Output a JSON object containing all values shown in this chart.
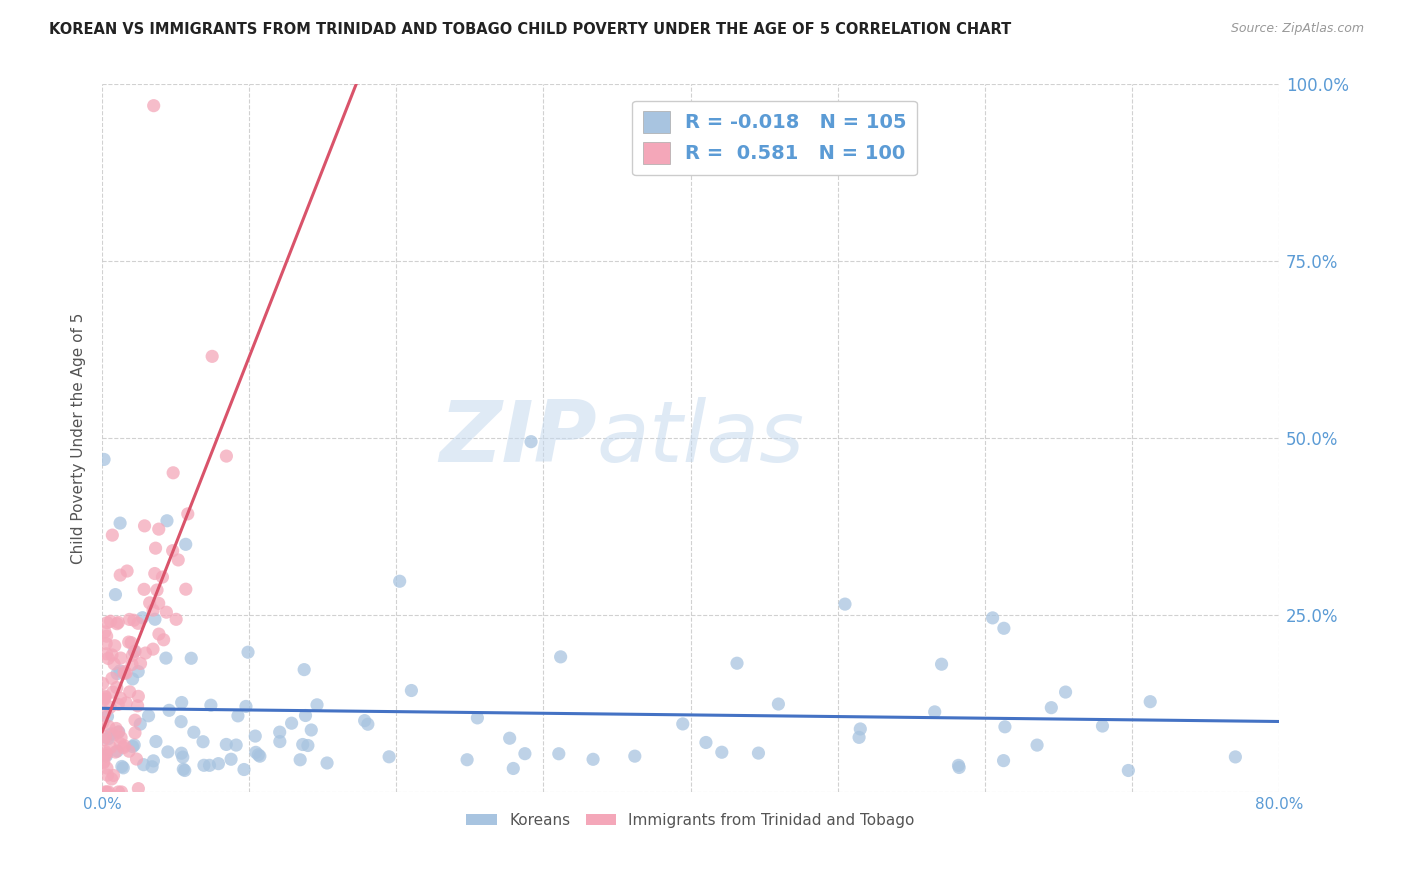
{
  "title": "KOREAN VS IMMIGRANTS FROM TRINIDAD AND TOBAGO CHILD POVERTY UNDER THE AGE OF 5 CORRELATION CHART",
  "source": "Source: ZipAtlas.com",
  "ylabel": "Child Poverty Under the Age of 5",
  "xlim": [
    0.0,
    0.8
  ],
  "ylim": [
    0.0,
    1.0
  ],
  "xticks": [
    0.0,
    0.1,
    0.2,
    0.3,
    0.4,
    0.5,
    0.6,
    0.7,
    0.8
  ],
  "yticks": [
    0.0,
    0.25,
    0.5,
    0.75,
    1.0
  ],
  "xticklabels": [
    "0.0%",
    "",
    "",
    "",
    "",
    "",
    "",
    "",
    "80.0%"
  ],
  "yticklabels_left": [
    "",
    "",
    "",
    "",
    ""
  ],
  "yticklabels_right": [
    "",
    "25.0%",
    "50.0%",
    "75.0%",
    "100.0%"
  ],
  "korean_color": "#a8c4e0",
  "tt_color": "#f4a7b9",
  "korean_R": -0.018,
  "korean_N": 105,
  "tt_R": 0.581,
  "tt_N": 100,
  "trendline_blue": "#4472c4",
  "trendline_pink": "#d9536a",
  "legend_label_korean": "Koreans",
  "legend_label_tt": "Immigrants from Trinidad and Tobago",
  "watermark_zip": "ZIP",
  "watermark_atlas": "atlas",
  "background_color": "#ffffff",
  "grid_color": "#cccccc",
  "title_color": "#222222",
  "axis_label_color": "#555555",
  "tick_label_color": "#5b9bd5",
  "legend_R_color": "#5b9bd5",
  "seed": 42
}
